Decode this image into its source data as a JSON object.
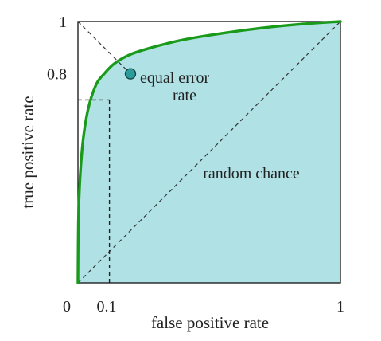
{
  "chart_data": {
    "type": "line",
    "title": "",
    "xlabel": "false positive rate",
    "ylabel": "true positive rate",
    "xlim": [
      0,
      1
    ],
    "ylim": [
      0,
      1
    ],
    "x_ticks": [
      {
        "value": 0,
        "label": "0"
      },
      {
        "value": 0.1,
        "label": "0.1"
      },
      {
        "value": 1,
        "label": "1"
      }
    ],
    "y_ticks": [
      {
        "value": 0.8,
        "label": "0.8"
      },
      {
        "value": 1,
        "label": "1"
      }
    ],
    "grid": false,
    "series": [
      {
        "role": "roc-curve",
        "color": "#1a9a1a",
        "fill": "#b0e1e5",
        "points": [
          [
            0,
            0
          ],
          [
            0.002,
            0.25
          ],
          [
            0.008,
            0.4
          ],
          [
            0.02,
            0.55
          ],
          [
            0.04,
            0.67
          ],
          [
            0.07,
            0.76
          ],
          [
            0.1,
            0.8
          ],
          [
            0.14,
            0.84
          ],
          [
            0.2,
            0.874
          ],
          [
            0.28,
            0.9
          ],
          [
            0.4,
            0.93
          ],
          [
            0.55,
            0.955
          ],
          [
            0.7,
            0.975
          ],
          [
            0.85,
            0.99
          ],
          [
            1,
            1
          ]
        ]
      },
      {
        "role": "random-chance-diagonal",
        "color": "#333333",
        "dashed": true,
        "points": [
          [
            0,
            0
          ],
          [
            1,
            1
          ]
        ]
      },
      {
        "role": "equal-error-diagonal",
        "color": "#333333",
        "dashed": true,
        "points": [
          [
            0,
            1
          ],
          [
            0.2,
            0.8
          ]
        ]
      }
    ],
    "guides": [
      {
        "role": "fpr-guide",
        "points": [
          [
            0.12,
            0
          ],
          [
            0.12,
            0.7
          ]
        ]
      },
      {
        "role": "tpr-guide",
        "points": [
          [
            0,
            0.7
          ],
          [
            0.12,
            0.7
          ]
        ]
      }
    ],
    "marker": {
      "x": 0.2,
      "y": 0.8,
      "color": "#2a9d9a"
    },
    "annotations": [
      {
        "text_line1": "equal error",
        "text_line2": "rate",
        "x": 0.2,
        "y": 0.8
      },
      {
        "text": "random chance",
        "x": 0.62,
        "y": 0.42
      }
    ]
  }
}
